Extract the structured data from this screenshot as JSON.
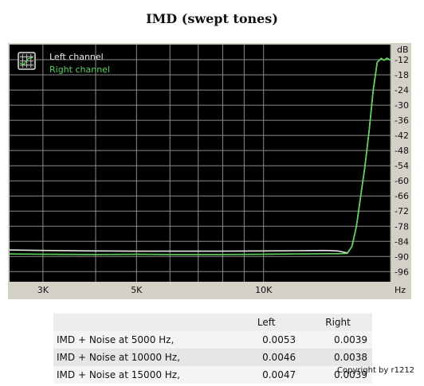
{
  "page": {
    "title": "IMD (swept tones)",
    "copyright": "Copyright by r1212"
  },
  "colors": {
    "plot_background": "#000000",
    "grid": "#8c8c8c",
    "frame": "#d4d0c8",
    "left_channel": "#e8e8e8",
    "right_channel": "#5bd35b"
  },
  "chart_data": {
    "type": "line",
    "title": "IMD (swept tones)",
    "xlabel": "",
    "ylabel": "",
    "x_unit": "Hz",
    "y_unit": "dB",
    "x_scale": "log",
    "xlim": [
      2500,
      20000
    ],
    "ylim": [
      -100,
      -6
    ],
    "grid": true,
    "legend_position": "top-left",
    "x_ticks": [
      {
        "value": 3000,
        "label": "3K"
      },
      {
        "value": 5000,
        "label": "5K"
      },
      {
        "value": 10000,
        "label": "10K"
      }
    ],
    "y_ticks": [
      {
        "value": -12,
        "label": "-12"
      },
      {
        "value": -18,
        "label": "-18"
      },
      {
        "value": -24,
        "label": "-24"
      },
      {
        "value": -30,
        "label": "-30"
      },
      {
        "value": -36,
        "label": "-36"
      },
      {
        "value": -42,
        "label": "-42"
      },
      {
        "value": -48,
        "label": "-48"
      },
      {
        "value": -54,
        "label": "-54"
      },
      {
        "value": -60,
        "label": "-60"
      },
      {
        "value": -66,
        "label": "-66"
      },
      {
        "value": -72,
        "label": "-72"
      },
      {
        "value": -78,
        "label": "-78"
      },
      {
        "value": -84,
        "label": "-84"
      },
      {
        "value": -90,
        "label": "-90"
      },
      {
        "value": -96,
        "label": "-96"
      }
    ],
    "series": [
      {
        "name": "Left channel",
        "color": "#e8e8e8",
        "points": [
          [
            2500,
            -87.4
          ],
          [
            3000,
            -87.6
          ],
          [
            4000,
            -87.8
          ],
          [
            5000,
            -87.9
          ],
          [
            6000,
            -87.9
          ],
          [
            8000,
            -87.9
          ],
          [
            10000,
            -87.8
          ],
          [
            12000,
            -87.7
          ],
          [
            14000,
            -87.6
          ],
          [
            15000,
            -87.8
          ],
          [
            15800,
            -88.6
          ],
          [
            16200,
            -86
          ],
          [
            16600,
            -78
          ],
          [
            17000,
            -66
          ],
          [
            17400,
            -54
          ],
          [
            17800,
            -40
          ],
          [
            18200,
            -24
          ],
          [
            18600,
            -13
          ],
          [
            19000,
            -11.5
          ],
          [
            19300,
            -12.2
          ],
          [
            19600,
            -11.4
          ],
          [
            20000,
            -12.2
          ]
        ]
      },
      {
        "name": "Right channel",
        "color": "#5bd35b",
        "points": [
          [
            2500,
            -89.0
          ],
          [
            3000,
            -89.1
          ],
          [
            4000,
            -89.2
          ],
          [
            5000,
            -89.1
          ],
          [
            6000,
            -89.2
          ],
          [
            8000,
            -89.2
          ],
          [
            10000,
            -89.1
          ],
          [
            12000,
            -89.0
          ],
          [
            14000,
            -88.9
          ],
          [
            15000,
            -88.9
          ],
          [
            15800,
            -88.8
          ],
          [
            16200,
            -86
          ],
          [
            16600,
            -78
          ],
          [
            17000,
            -66
          ],
          [
            17400,
            -54
          ],
          [
            17800,
            -40
          ],
          [
            18200,
            -24
          ],
          [
            18600,
            -13
          ],
          [
            19000,
            -11.5
          ],
          [
            19300,
            -12.2
          ],
          [
            19600,
            -11.4
          ],
          [
            20000,
            -12.2
          ]
        ]
      }
    ]
  },
  "results_table": {
    "headers": [
      "",
      "Left",
      "Right"
    ],
    "rows": [
      {
        "label": "IMD + Noise at 5000 Hz,",
        "left": "0.0053",
        "right": "0.0039"
      },
      {
        "label": "IMD + Noise at 10000 Hz,",
        "left": "0.0046",
        "right": "0.0038"
      },
      {
        "label": "IMD + Noise at 15000 Hz,",
        "left": "0.0047",
        "right": "0.0039"
      }
    ]
  }
}
